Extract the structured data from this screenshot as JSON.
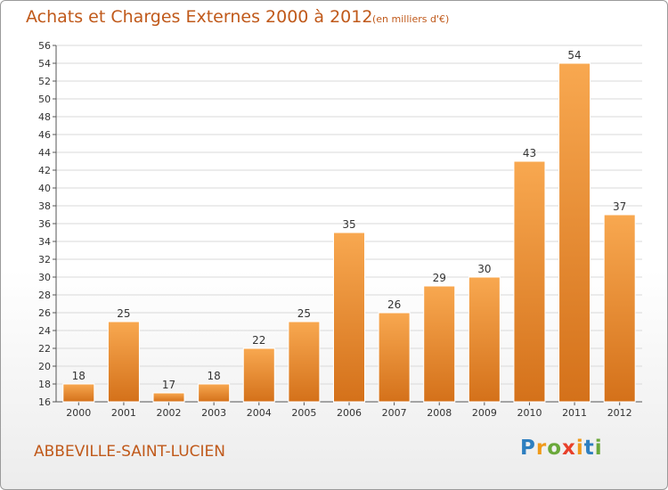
{
  "header": {
    "title": "Achats et Charges Externes 2000 à 2012",
    "subtitle": "(en milliers d'€)"
  },
  "footer": {
    "city": "ABBEVILLE-SAINT-LUCIEN",
    "logo_text": "Proxiti"
  },
  "colors": {
    "bar_light": "#f7a54c",
    "bar_dark": "#d6741a",
    "title": "#c0591a",
    "grid": "#d8d8d8"
  },
  "chart_data": {
    "type": "bar",
    "title": "Achats et Charges Externes 2000 à 2012",
    "subtitle": "(en milliers d'€)",
    "categories": [
      "2000",
      "2001",
      "2002",
      "2003",
      "2004",
      "2005",
      "2006",
      "2007",
      "2008",
      "2009",
      "2010",
      "2011",
      "2012"
    ],
    "values": [
      18,
      25,
      17,
      18,
      22,
      25,
      35,
      26,
      29,
      30,
      43,
      54,
      37
    ],
    "ylim": [
      16,
      56
    ],
    "yticks": [
      16,
      18,
      20,
      22,
      24,
      26,
      28,
      30,
      32,
      34,
      36,
      38,
      40,
      42,
      44,
      46,
      48,
      50,
      52,
      54,
      56
    ],
    "grid": true,
    "legend": "none",
    "xlabel": "",
    "ylabel": ""
  }
}
